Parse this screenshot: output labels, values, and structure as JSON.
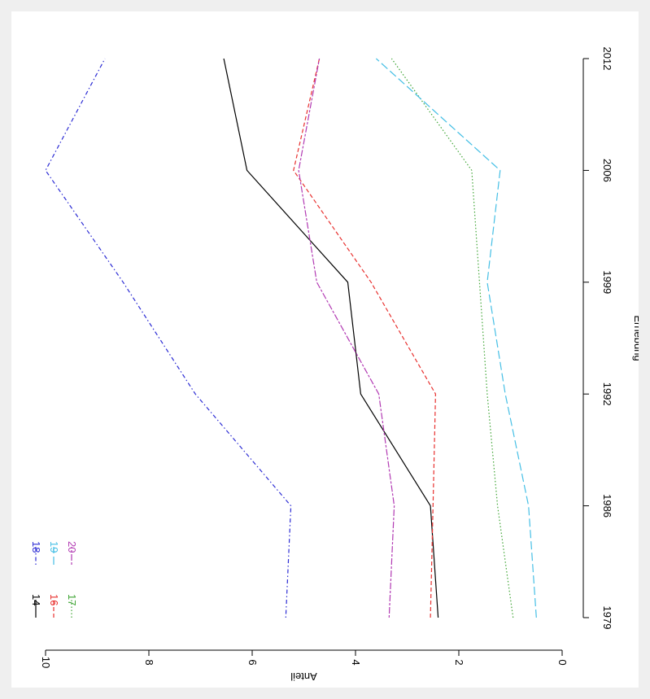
{
  "chart_data": {
    "type": "line",
    "xlabel": "Erhebung",
    "ylabel": "Anteil",
    "x": [
      "1979",
      "1986",
      "1992",
      "1999",
      "2006",
      "2012"
    ],
    "xticks": [
      "1979",
      "1986",
      "1992",
      "1999",
      "2006",
      "2012"
    ],
    "yticks": [
      "0",
      "2",
      "4",
      "6",
      "8",
      "10"
    ],
    "ylim": [
      0,
      10
    ],
    "orientation": "rotated-90-clockwise",
    "grid": false,
    "legend_position": "top-left",
    "series": [
      {
        "name": "14",
        "color": "#000000",
        "dash": "solid",
        "values": [
          2.4,
          2.55,
          3.9,
          4.15,
          6.1,
          6.55
        ]
      },
      {
        "name": "16",
        "color": "#e8312f",
        "dash": "dashed",
        "values": [
          2.55,
          2.5,
          2.45,
          3.7,
          5.2,
          4.7
        ]
      },
      {
        "name": "17",
        "color": "#3fa535",
        "dash": "dotted",
        "values": [
          0.95,
          1.25,
          1.45,
          1.6,
          1.75,
          3.3
        ]
      },
      {
        "name": "18",
        "color": "#2b2bd4",
        "dash": "dotdash",
        "values": [
          5.35,
          5.25,
          7.1,
          8.5,
          10.0,
          8.85
        ]
      },
      {
        "name": "19",
        "color": "#45bfe5",
        "dash": "longdash",
        "values": [
          0.5,
          0.65,
          1.1,
          1.45,
          1.2,
          3.6
        ]
      },
      {
        "name": "20",
        "color": "#b23ab3",
        "dash": "twodash",
        "values": [
          3.35,
          3.25,
          3.55,
          4.75,
          5.1,
          4.7
        ]
      }
    ]
  }
}
